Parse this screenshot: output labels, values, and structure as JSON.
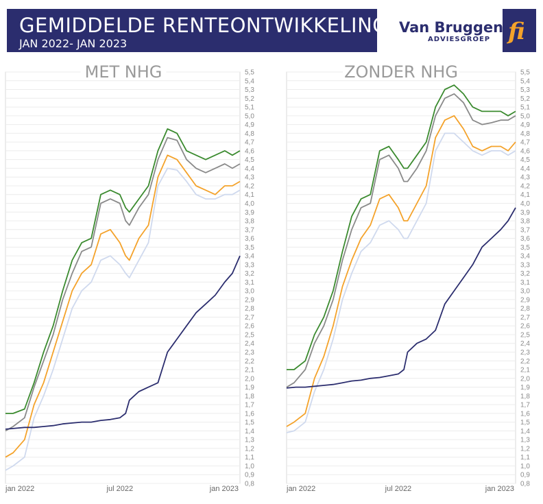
{
  "header": {
    "title": "GEMIDDELDE RENTEONTWIKKELING",
    "subtitle": "JAN 2022- JAN 2023"
  },
  "logo": {
    "name": "Van Bruggen",
    "sub": "ADVIESGROEP",
    "mark": "fi",
    "icon": "van-bruggen-fi-logo"
  },
  "colors": {
    "banner": "#2b2d6e",
    "green": "#3a8a2e",
    "gray": "#8a8a8a",
    "orange": "#f4a22a",
    "lightblue": "#cfd9ee",
    "navy": "#2b2d6e"
  },
  "chart_data": [
    {
      "type": "line",
      "title": "MET NHG",
      "x_tick_labels": [
        "jan 2022",
        "jul 2022",
        "jan 2023"
      ],
      "x_ticks": [
        0,
        6,
        12
      ],
      "xlim": [
        0,
        12.3
      ],
      "ylim": [
        0.8,
        5.5
      ],
      "y_ticks": [
        "0,8",
        "0,9",
        "1,0",
        "1,1",
        "1,2",
        "1,3",
        "1,4",
        "1,5",
        "1,6",
        "1,7",
        "1,8",
        "1,9",
        "2,0",
        "2,1",
        "2,2",
        "2,3",
        "2,4",
        "2,5",
        "2,6",
        "2,7",
        "2,8",
        "2,9",
        "3,0",
        "3,1",
        "3,2",
        "3,3",
        "3,4",
        "3,5",
        "3,6",
        "3,7",
        "3,8",
        "3,9",
        "4,0",
        "4,1",
        "4,2",
        "4,3",
        "4,4",
        "4,5",
        "4,6",
        "4,7",
        "4,8",
        "4,9",
        "5,0",
        "5,1",
        "5,2",
        "5,3",
        "5,4",
        "5,5"
      ],
      "grid": true,
      "series": [
        {
          "color": "#3a8a2e",
          "x": [
            0,
            0.4,
            1,
            1.5,
            2,
            2.5,
            3,
            3.5,
            4,
            4.5,
            5,
            5.5,
            6,
            6.3,
            6.5,
            7,
            7.5,
            8,
            8.5,
            9,
            9.5,
            10,
            10.5,
            11,
            11.5,
            11.9,
            12.3
          ],
          "y": [
            1.6,
            1.6,
            1.65,
            1.95,
            2.3,
            2.6,
            3.0,
            3.35,
            3.55,
            3.6,
            4.1,
            4.15,
            4.1,
            3.95,
            3.9,
            4.05,
            4.2,
            4.6,
            4.85,
            4.8,
            4.6,
            4.55,
            4.5,
            4.55,
            4.6,
            4.55,
            4.6
          ]
        },
        {
          "color": "#8a8a8a",
          "x": [
            0,
            0.4,
            1,
            1.5,
            2,
            2.5,
            3,
            3.5,
            4,
            4.5,
            5,
            5.5,
            6,
            6.3,
            6.5,
            7,
            7.5,
            8,
            8.5,
            9,
            9.5,
            10,
            10.5,
            11,
            11.5,
            11.9,
            12.3
          ],
          "y": [
            1.4,
            1.45,
            1.55,
            1.9,
            2.2,
            2.5,
            2.9,
            3.2,
            3.45,
            3.5,
            4.0,
            4.05,
            4.0,
            3.8,
            3.75,
            3.95,
            4.1,
            4.5,
            4.75,
            4.72,
            4.5,
            4.4,
            4.35,
            4.4,
            4.45,
            4.4,
            4.45
          ]
        },
        {
          "color": "#f4a22a",
          "x": [
            0,
            0.4,
            1,
            1.5,
            2,
            2.5,
            3,
            3.5,
            4,
            4.5,
            5,
            5.5,
            6,
            6.3,
            6.5,
            7,
            7.5,
            8,
            8.5,
            9,
            9.5,
            10,
            10.5,
            11,
            11.5,
            11.9,
            12.3
          ],
          "y": [
            1.1,
            1.15,
            1.3,
            1.7,
            1.95,
            2.3,
            2.65,
            3.0,
            3.2,
            3.3,
            3.65,
            3.7,
            3.55,
            3.4,
            3.35,
            3.6,
            3.75,
            4.3,
            4.55,
            4.5,
            4.35,
            4.2,
            4.15,
            4.1,
            4.2,
            4.2,
            4.25
          ]
        },
        {
          "color": "#cfd9ee",
          "x": [
            0,
            0.4,
            1,
            1.5,
            2,
            2.5,
            3,
            3.5,
            4,
            4.5,
            5,
            5.5,
            6,
            6.3,
            6.5,
            7,
            7.5,
            8,
            8.5,
            9,
            9.5,
            10,
            10.5,
            11,
            11.5,
            11.9,
            12.3
          ],
          "y": [
            0.95,
            1.0,
            1.1,
            1.55,
            1.8,
            2.1,
            2.45,
            2.8,
            3.0,
            3.1,
            3.35,
            3.4,
            3.3,
            3.2,
            3.15,
            3.35,
            3.55,
            4.2,
            4.4,
            4.38,
            4.25,
            4.1,
            4.05,
            4.05,
            4.1,
            4.1,
            4.15
          ]
        },
        {
          "color": "#2b2d6e",
          "x": [
            0,
            0.5,
            1,
            1.5,
            2,
            2.5,
            3,
            3.5,
            4,
            4.5,
            5,
            5.5,
            6,
            6.3,
            6.5,
            7,
            7.5,
            8,
            8.5,
            9,
            9.5,
            10,
            10.5,
            11,
            11.5,
            11.9,
            12.3
          ],
          "y": [
            1.42,
            1.43,
            1.44,
            1.44,
            1.45,
            1.46,
            1.48,
            1.49,
            1.5,
            1.5,
            1.52,
            1.53,
            1.55,
            1.6,
            1.75,
            1.85,
            1.9,
            1.95,
            2.3,
            2.45,
            2.6,
            2.75,
            2.85,
            2.95,
            3.1,
            3.2,
            3.4
          ]
        }
      ]
    },
    {
      "type": "line",
      "title": "ZONDER NHG",
      "x_tick_labels": [
        "jan 2022",
        "jul 2022",
        "jan 2023"
      ],
      "x_ticks": [
        0,
        6,
        12
      ],
      "xlim": [
        0,
        12.3
      ],
      "ylim": [
        0.8,
        5.5
      ],
      "y_ticks": [
        "0,8",
        "0,9",
        "1,0",
        "1,1",
        "1,2",
        "1,3",
        "1,4",
        "1,5",
        "1,6",
        "1,7",
        "1,8",
        "1,9",
        "2,0",
        "2,1",
        "2,2",
        "2,3",
        "2,4",
        "2,5",
        "2,6",
        "2,7",
        "2,8",
        "2,9",
        "3,0",
        "3,1",
        "3,2",
        "3,3",
        "3,4",
        "3,5",
        "3,6",
        "3,7",
        "3,8",
        "3,9",
        "4,0",
        "4,1",
        "4,2",
        "4,3",
        "4,4",
        "4,5",
        "4,6",
        "4,7",
        "4,8",
        "4,9",
        "5,0",
        "5,1",
        "5,2",
        "5,3",
        "5,4",
        "5,5"
      ],
      "grid": true,
      "series": [
        {
          "color": "#3a8a2e",
          "x": [
            0,
            0.4,
            1,
            1.5,
            2,
            2.5,
            3,
            3.5,
            4,
            4.5,
            5,
            5.5,
            6,
            6.3,
            6.5,
            7,
            7.5,
            8,
            8.5,
            9,
            9.5,
            10,
            10.5,
            11,
            11.5,
            11.9,
            12.3
          ],
          "y": [
            2.1,
            2.1,
            2.2,
            2.5,
            2.7,
            3.0,
            3.45,
            3.85,
            4.05,
            4.1,
            4.6,
            4.65,
            4.5,
            4.4,
            4.4,
            4.55,
            4.7,
            5.1,
            5.3,
            5.35,
            5.25,
            5.1,
            5.05,
            5.05,
            5.05,
            5.0,
            5.05
          ]
        },
        {
          "color": "#8a8a8a",
          "x": [
            0,
            0.4,
            1,
            1.5,
            2,
            2.5,
            3,
            3.5,
            4,
            4.5,
            5,
            5.5,
            6,
            6.3,
            6.5,
            7,
            7.5,
            8,
            8.5,
            9,
            9.5,
            10,
            10.5,
            11,
            11.5,
            11.9,
            12.3
          ],
          "y": [
            1.9,
            1.95,
            2.1,
            2.4,
            2.6,
            2.9,
            3.35,
            3.7,
            3.95,
            4.0,
            4.5,
            4.55,
            4.4,
            4.25,
            4.25,
            4.4,
            4.6,
            5.0,
            5.2,
            5.25,
            5.15,
            4.95,
            4.9,
            4.92,
            4.95,
            4.95,
            5.0
          ]
        },
        {
          "color": "#f4a22a",
          "x": [
            0,
            0.4,
            1,
            1.5,
            2,
            2.5,
            3,
            3.5,
            4,
            4.5,
            5,
            5.5,
            6,
            6.3,
            6.5,
            7,
            7.5,
            8,
            8.5,
            9,
            9.5,
            10,
            10.5,
            11,
            11.5,
            11.9,
            12.3
          ],
          "y": [
            1.45,
            1.5,
            1.6,
            2.0,
            2.25,
            2.6,
            3.05,
            3.35,
            3.6,
            3.75,
            4.05,
            4.1,
            3.95,
            3.8,
            3.8,
            4.0,
            4.2,
            4.75,
            4.95,
            5.0,
            4.85,
            4.65,
            4.6,
            4.65,
            4.65,
            4.6,
            4.7
          ]
        },
        {
          "color": "#cfd9ee",
          "x": [
            0,
            0.4,
            1,
            1.5,
            2,
            2.5,
            3,
            3.5,
            4,
            4.5,
            5,
            5.5,
            6,
            6.3,
            6.5,
            7,
            7.5,
            8,
            8.5,
            9,
            9.5,
            10,
            10.5,
            11,
            11.5,
            11.9,
            12.3
          ],
          "y": [
            1.38,
            1.4,
            1.5,
            1.85,
            2.1,
            2.45,
            2.9,
            3.2,
            3.45,
            3.55,
            3.75,
            3.8,
            3.7,
            3.6,
            3.6,
            3.8,
            4.0,
            4.6,
            4.8,
            4.8,
            4.7,
            4.6,
            4.55,
            4.6,
            4.6,
            4.55,
            4.6
          ]
        },
        {
          "color": "#2b2d6e",
          "x": [
            0,
            0.5,
            1,
            1.5,
            2,
            2.5,
            3,
            3.5,
            4,
            4.5,
            5,
            5.5,
            6,
            6.3,
            6.5,
            7,
            7.5,
            8,
            8.5,
            9,
            9.5,
            10,
            10.5,
            11,
            11.5,
            11.9,
            12.3
          ],
          "y": [
            1.89,
            1.9,
            1.9,
            1.91,
            1.92,
            1.93,
            1.95,
            1.97,
            1.98,
            2.0,
            2.01,
            2.03,
            2.05,
            2.1,
            2.3,
            2.4,
            2.45,
            2.55,
            2.85,
            3.0,
            3.15,
            3.3,
            3.5,
            3.6,
            3.7,
            3.8,
            3.95
          ]
        }
      ]
    }
  ]
}
